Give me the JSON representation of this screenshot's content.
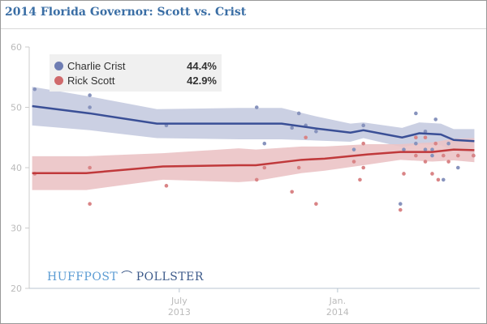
{
  "chart_data": {
    "type": "line",
    "title": "2014 Florida Governor: Scott vs. Crist",
    "x_unit": "days since 2013-01-01",
    "xlim": [
      0,
      530
    ],
    "ylim": [
      20,
      60
    ],
    "y_ticks": [
      "20",
      "30",
      "40",
      "50",
      "60"
    ],
    "x_ticks": [
      {
        "day": 181,
        "line1": "July",
        "line2": "2013"
      },
      {
        "day": 365,
        "line1": "Jan.",
        "line2": "2014"
      }
    ],
    "legend_placement": "top-left",
    "series": [
      {
        "name": "Charlie Crist",
        "latest": "44.4%",
        "color": "#3a4f96",
        "band_color": "#c5cbe0",
        "point_color": "#8793bd",
        "trend_x": [
          10,
          77,
          155,
          250,
          300,
          340,
          380,
          395,
          440,
          460,
          485,
          500,
          524
        ],
        "trend_y": [
          50.2,
          49.0,
          47.3,
          47.3,
          47.3,
          46.5,
          45.8,
          46.2,
          45.0,
          45.7,
          45.5,
          44.6,
          44.4
        ],
        "band_halfwidth": [
          3.2,
          2.8,
          2.4,
          2.6,
          2.6,
          2.0,
          1.5,
          1.3,
          1.6,
          1.8,
          1.8,
          1.8,
          2.0
        ],
        "points_x": [
          13,
          77,
          77,
          166,
          271,
          280,
          312,
          320,
          328,
          340,
          384,
          395,
          438,
          442,
          456,
          456,
          467,
          467,
          475,
          475,
          479,
          488,
          494,
          505,
          523
        ],
        "points_y": [
          53,
          52,
          50,
          47,
          50,
          44,
          46.6,
          49,
          47,
          46,
          43,
          47,
          34,
          43,
          49,
          44,
          46,
          43,
          42,
          43,
          48,
          38,
          44,
          40,
          42
        ]
      },
      {
        "name": "Rick Scott",
        "latest": "42.9%",
        "color": "#c0393b",
        "band_color": "#ebc3c5",
        "point_color": "#d98486",
        "trend_x": [
          10,
          73,
          162,
          250,
          270,
          323,
          350,
          400,
          438,
          475,
          500,
          524
        ],
        "trend_y": [
          39.1,
          39.1,
          40.2,
          40.4,
          40.4,
          41.3,
          41.5,
          42.2,
          42.6,
          42.6,
          43.0,
          42.9
        ],
        "band_halfwidth": [
          2.8,
          2.8,
          2.2,
          2.8,
          2.6,
          2.2,
          2.0,
          1.7,
          1.3,
          1.6,
          1.8,
          2.0
        ],
        "points_x": [
          13,
          77,
          77,
          166,
          271,
          280,
          312,
          320,
          328,
          340,
          384,
          391,
          395,
          395,
          438,
          442,
          456,
          456,
          467,
          467,
          475,
          479,
          482,
          488,
          494,
          505,
          523
        ],
        "points_y": [
          39,
          40,
          34,
          37,
          38,
          40,
          36,
          40,
          45,
          34,
          41,
          38,
          44,
          40,
          33,
          39,
          45,
          42,
          45,
          41,
          39,
          44,
          38,
          42,
          41,
          42,
          42
        ]
      }
    ]
  },
  "logo": {
    "left": "HUFFPOST",
    "right": "POLLSTER"
  }
}
